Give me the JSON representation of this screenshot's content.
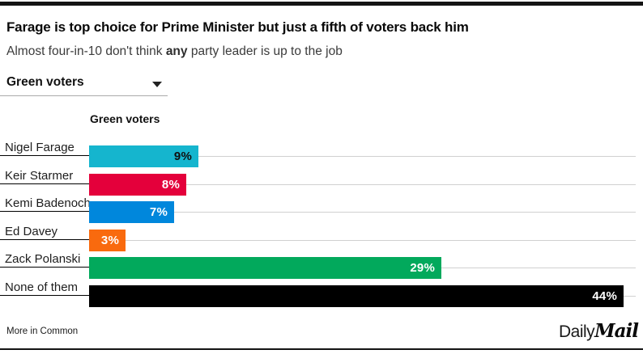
{
  "header": {
    "title": "Farage is top choice for Prime Minister but just a fifth of voters back him",
    "subtitle_prefix": "Almost four-in-10 don't think ",
    "subtitle_bold": "any",
    "subtitle_suffix": " party leader is up to the job"
  },
  "filter": {
    "selected": "Green voters"
  },
  "chart_data": {
    "type": "bar",
    "orientation": "horizontal",
    "column_header": "Green voters",
    "categories": [
      "Nigel Farage",
      "Keir Starmer",
      "Kemi Badenoch",
      "Ed Davey",
      "Zack Polanski",
      "None of them"
    ],
    "values": [
      9,
      8,
      7,
      3,
      29,
      44
    ],
    "value_labels": [
      "9%",
      "8%",
      "7%",
      "3%",
      "29%",
      "44%"
    ],
    "bar_colors": [
      "#15B5CE",
      "#E4003B",
      "#0087DC",
      "#F96A0E",
      "#02A95C",
      "#000000"
    ],
    "value_label_colors": [
      "#101010",
      "#ffffff",
      "#ffffff",
      "#ffffff",
      "#ffffff",
      "#ffffff"
    ],
    "xlim": [
      0,
      45
    ],
    "grid": true,
    "legend": "none",
    "units": "percent"
  },
  "footer": {
    "source": "More in Common",
    "brand_daily": "Daily",
    "brand_mail": "Mail"
  }
}
